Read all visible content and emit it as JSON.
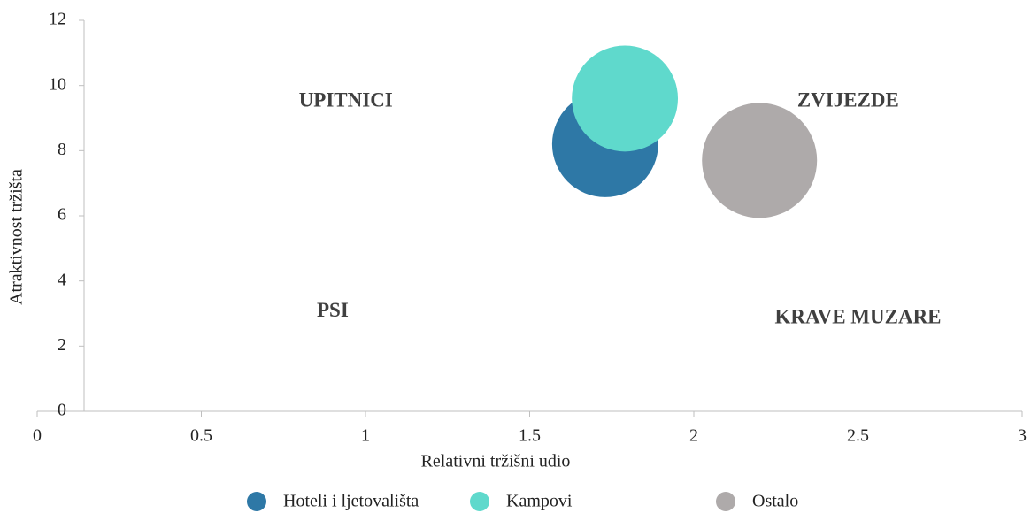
{
  "chart_data": {
    "type": "bubble",
    "x_label": "Relativni tržišni udio",
    "y_label": "Atraktivnost tržišta",
    "xlim": [
      0,
      3
    ],
    "ylim": [
      0,
      12
    ],
    "xticks": [
      0,
      0.5,
      1,
      1.5,
      2,
      2.5,
      3
    ],
    "yticks": [
      0,
      2,
      4,
      6,
      8,
      10,
      12
    ],
    "legend": "bottom",
    "series": [
      {
        "name": "Hoteli i ljetovališta",
        "color": "#2e78a6",
        "x": [
          1.73
        ],
        "values": [
          8.2
        ],
        "sizes": [
          85
        ]
      },
      {
        "name": "Kampovi",
        "color": "#5fd9cc",
        "x": [
          1.79
        ],
        "values": [
          9.6
        ],
        "sizes": [
          85
        ]
      },
      {
        "name": "Ostalo",
        "color": "#aeaaaa",
        "x": [
          2.2
        ],
        "values": [
          7.7
        ],
        "sizes": [
          100
        ]
      }
    ],
    "annotations": [
      {
        "text": "UPITNICI",
        "x": 0.94,
        "y": 9.5
      },
      {
        "text": "ZVIJEZDE",
        "x": 2.47,
        "y": 9.5
      },
      {
        "text": "PSI",
        "x": 0.9,
        "y": 3.05
      },
      {
        "text": "KRAVE MUZARE",
        "x": 2.5,
        "y": 2.85
      }
    ]
  }
}
